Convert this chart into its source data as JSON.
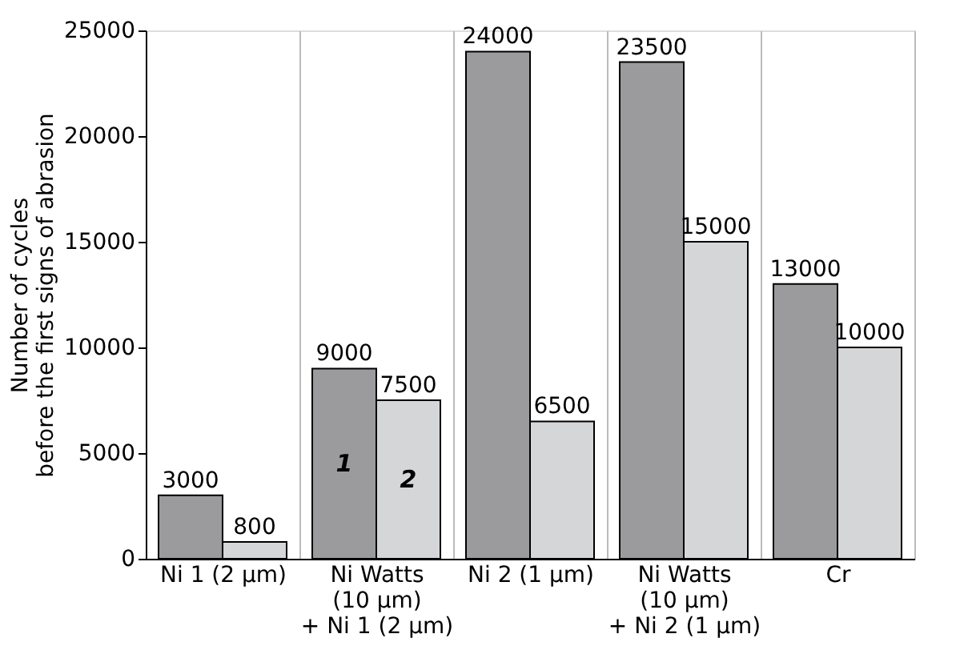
{
  "chart_data": {
    "type": "bar",
    "categories": [
      "Ni 1 (2 µm)",
      "Ni Watts\n(10 µm)\n+ Ni 1 (2 µm)",
      "Ni 2 (1 µm)",
      "Ni Watts\n(10 µm)\n+ Ni 2 (1 µm)",
      "Cr"
    ],
    "series": [
      {
        "name": "1",
        "color": "#9b9b9d",
        "values": [
          3000,
          9000,
          24000,
          23500,
          13000
        ]
      },
      {
        "name": "2",
        "color": "#d5d6d8",
        "values": [
          800,
          7500,
          6500,
          15000,
          10000
        ]
      }
    ],
    "ylabel": "Number of cycles\nbefore the first signs of abrasion",
    "ylim": [
      0,
      25000
    ],
    "yticks": [
      0,
      5000,
      10000,
      15000,
      20000,
      25000
    ],
    "grid": "x",
    "legend": false,
    "data_labels": true
  }
}
